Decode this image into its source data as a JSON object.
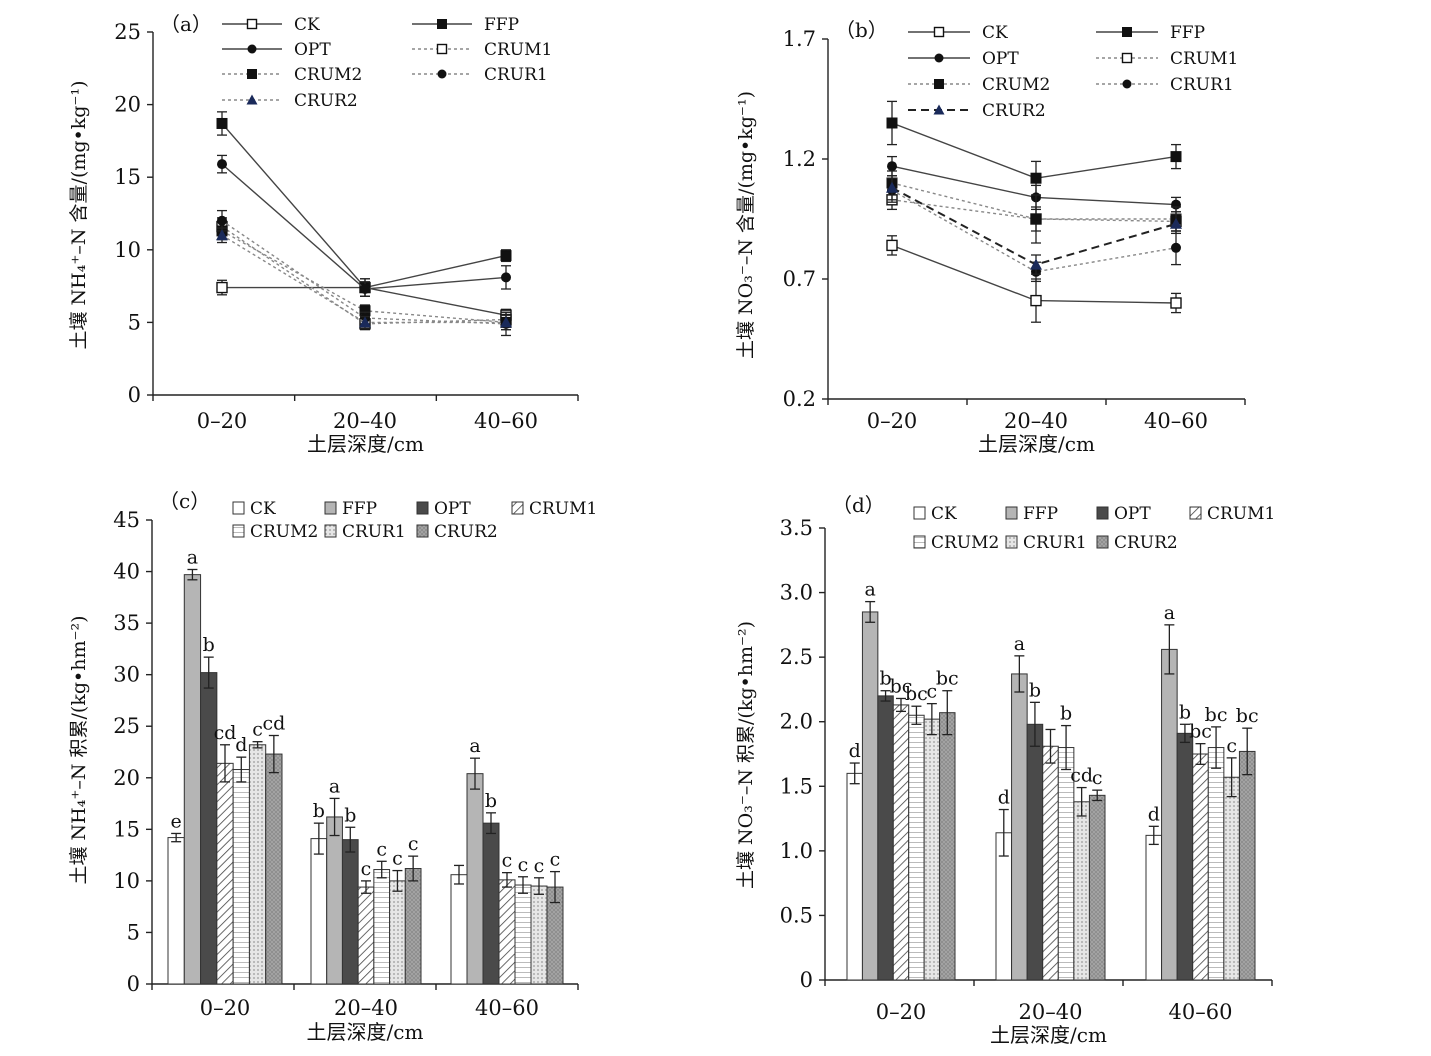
{
  "chart_data": [
    {
      "panel_label": "（a）",
      "type": "line",
      "ylabel": "土壤 NH₄⁺–N 含量/(mg•kg⁻¹)",
      "xlabel": "土层深度/cm",
      "categories": [
        "0–20",
        "20–40",
        "40–60"
      ],
      "ylim": [
        0,
        25
      ],
      "yticks": [
        "0",
        "5",
        "10",
        "15",
        "20",
        "25"
      ],
      "legend_position": "top",
      "series": [
        {
          "name": "CK",
          "values": [
            7.4,
            7.4,
            5.5
          ],
          "errors": [
            0.5,
            0.6,
            0.4
          ],
          "marker": "square-open",
          "dashed": false
        },
        {
          "name": "FFP",
          "values": [
            18.7,
            7.4,
            9.6
          ],
          "errors": [
            0.8,
            0.6,
            0.4
          ],
          "marker": "square-filled",
          "dashed": false
        },
        {
          "name": "OPT",
          "values": [
            15.9,
            7.3,
            8.1
          ],
          "errors": [
            0.6,
            0.5,
            0.8
          ],
          "marker": "circle-filled",
          "dashed": false
        },
        {
          "name": "CRUM1",
          "values": [
            11.6,
            4.9,
            5.2
          ],
          "errors": [
            0.6,
            0.4,
            0.5
          ],
          "marker": "square-open",
          "dashed": true
        },
        {
          "name": "CRUM2",
          "values": [
            11.3,
            5.8,
            5.0
          ],
          "errors": [
            0.6,
            0.4,
            0.5
          ],
          "marker": "square-filled",
          "dashed": true
        },
        {
          "name": "CRUR1",
          "values": [
            12.0,
            5.3,
            4.9
          ],
          "errors": [
            0.7,
            0.4,
            0.8
          ],
          "marker": "circle-filled",
          "dashed": true
        },
        {
          "name": "CRUR2",
          "values": [
            11.0,
            5.0,
            5.0
          ],
          "errors": [
            0.5,
            0.4,
            0.5
          ],
          "marker": "triangle-filled",
          "dashed": true
        }
      ]
    },
    {
      "panel_label": "（b）",
      "type": "line",
      "ylabel": "土壤 NO₃⁻–N 含量/(mg•kg⁻¹)",
      "xlabel": "土层深度/cm",
      "categories": [
        "0–20",
        "20–40",
        "40–60"
      ],
      "ylim": [
        0.2,
        1.7
      ],
      "yticks": [
        "0.2",
        "0.7",
        "1.2",
        "1.7"
      ],
      "legend_position": "top",
      "series": [
        {
          "name": "CK",
          "values": [
            0.84,
            0.61,
            0.6
          ],
          "errors": [
            0.04,
            0.09,
            0.04
          ],
          "marker": "square-open",
          "dashed": false
        },
        {
          "name": "FFP",
          "values": [
            1.35,
            1.12,
            1.21
          ],
          "errors": [
            0.09,
            0.07,
            0.05
          ],
          "marker": "square-filled",
          "dashed": false
        },
        {
          "name": "OPT",
          "values": [
            1.17,
            1.04,
            1.01
          ],
          "errors": [
            0.04,
            0.05,
            0.03
          ],
          "marker": "circle-filled",
          "dashed": false
        },
        {
          "name": "CRUM1",
          "values": [
            1.03,
            0.95,
            0.94
          ],
          "errors": [
            0.04,
            0.05,
            0.04
          ],
          "marker": "square-open",
          "dashed": true
        },
        {
          "name": "CRUM2",
          "values": [
            1.1,
            0.95,
            0.95
          ],
          "errors": [
            0.05,
            0.1,
            0.05
          ],
          "marker": "square-filled",
          "dashed": true
        },
        {
          "name": "CRUR1",
          "values": [
            1.07,
            0.73,
            0.83
          ],
          "errors": [
            0.05,
            0.04,
            0.07
          ],
          "marker": "circle-filled",
          "dashed": true
        },
        {
          "name": "CRUR2",
          "values": [
            1.08,
            0.76,
            0.93
          ],
          "errors": [
            0.05,
            0.04,
            0.04
          ],
          "marker": "triangle-filled",
          "dashed": true,
          "bold": true
        }
      ]
    },
    {
      "panel_label": "（c）",
      "type": "bar",
      "ylabel": "土壤 NH₄⁺–N 积累/(kg•hm⁻²)",
      "xlabel": "土层深度/cm",
      "categories": [
        "0–20",
        "20–40",
        "40–60"
      ],
      "ylim": [
        0,
        45
      ],
      "yticks": [
        "0",
        "5",
        "10",
        "15",
        "20",
        "25",
        "30",
        "35",
        "40",
        "45"
      ],
      "legend_position": "top",
      "series": [
        {
          "name": "CK",
          "values": [
            14.2,
            14.1,
            10.6
          ],
          "errors": [
            0.4,
            1.5,
            0.9
          ],
          "letters": [
            "e",
            "b",
            ""
          ],
          "fill": "white"
        },
        {
          "name": "FFP",
          "values": [
            39.7,
            16.2,
            20.4
          ],
          "errors": [
            0.5,
            1.8,
            1.5
          ],
          "letters": [
            "a",
            "a",
            "a"
          ],
          "fill": "lightgray"
        },
        {
          "name": "OPT",
          "values": [
            30.2,
            14.0,
            15.6
          ],
          "errors": [
            1.5,
            1.2,
            1.0
          ],
          "letters": [
            "b",
            "b",
            "b"
          ],
          "fill": "dark"
        },
        {
          "name": "CRUM1",
          "values": [
            21.4,
            9.4,
            10.1
          ],
          "errors": [
            1.8,
            0.6,
            0.7
          ],
          "letters": [
            "cd",
            "c",
            "c"
          ],
          "fill": "hatch"
        },
        {
          "name": "CRUM2",
          "values": [
            20.8,
            11.1,
            9.6
          ],
          "errors": [
            1.2,
            0.8,
            0.8
          ],
          "letters": [
            "d",
            "c",
            "c"
          ],
          "fill": "lines"
        },
        {
          "name": "CRUR1",
          "values": [
            23.2,
            10.0,
            9.5
          ],
          "errors": [
            0.3,
            1.0,
            0.8
          ],
          "letters": [
            "c",
            "c",
            "c"
          ],
          "fill": "dots"
        },
        {
          "name": "CRUR2",
          "values": [
            22.3,
            11.2,
            9.4
          ],
          "errors": [
            1.8,
            1.2,
            1.5
          ],
          "letters": [
            "cd",
            "c",
            "c"
          ],
          "fill": "grid"
        }
      ]
    },
    {
      "panel_label": "（d）",
      "type": "bar",
      "ylabel": "土壤 NO₃⁻–N 积累/(kg•hm⁻²)",
      "xlabel": "土层深度/cm",
      "categories": [
        "0–20",
        "20–40",
        "40–60"
      ],
      "ylim": [
        0,
        3.5
      ],
      "yticks": [
        "0",
        "0.5",
        "1.0",
        "1.5",
        "2.0",
        "2.5",
        "3.0",
        "3.5"
      ],
      "legend_position": "top",
      "series": [
        {
          "name": "CK",
          "values": [
            1.6,
            1.14,
            1.12
          ],
          "errors": [
            0.08,
            0.18,
            0.07
          ],
          "letters": [
            "d",
            "d",
            "d"
          ],
          "fill": "white"
        },
        {
          "name": "FFP",
          "values": [
            2.85,
            2.37,
            2.56
          ],
          "errors": [
            0.08,
            0.14,
            0.19
          ],
          "letters": [
            "a",
            "a",
            "a"
          ],
          "fill": "lightgray"
        },
        {
          "name": "OPT",
          "values": [
            2.2,
            1.98,
            1.91
          ],
          "errors": [
            0.04,
            0.17,
            0.07
          ],
          "letters": [
            "b",
            "b",
            "b"
          ],
          "fill": "dark"
        },
        {
          "name": "CRUM1",
          "values": [
            2.13,
            1.81,
            1.75
          ],
          "errors": [
            0.05,
            0.13,
            0.08
          ],
          "letters": [
            "bc",
            "",
            "bc"
          ],
          "fill": "hatch"
        },
        {
          "name": "CRUM2",
          "values": [
            2.05,
            1.8,
            1.8
          ],
          "errors": [
            0.07,
            0.17,
            0.16
          ],
          "letters": [
            "bc",
            "b",
            "bc"
          ],
          "fill": "lines"
        },
        {
          "name": "CRUR1",
          "values": [
            2.02,
            1.38,
            1.57
          ],
          "errors": [
            0.12,
            0.11,
            0.15
          ],
          "letters": [
            "c",
            "cd",
            "c"
          ],
          "fill": "dots"
        },
        {
          "name": "CRUR2",
          "values": [
            2.07,
            1.43,
            1.77
          ],
          "errors": [
            0.17,
            0.04,
            0.18
          ],
          "letters": [
            "bc",
            "c",
            "bc"
          ],
          "fill": "grid"
        }
      ]
    }
  ]
}
